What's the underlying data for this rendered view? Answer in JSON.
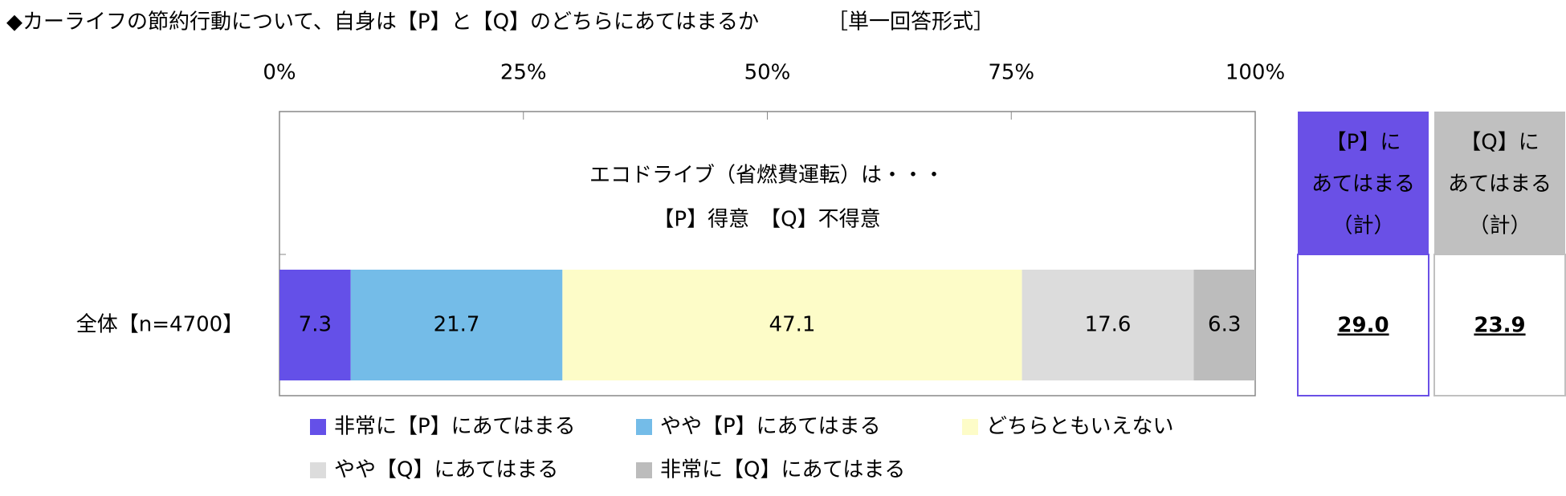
{
  "chart_data": {
    "type": "stacked_bar_horizontal",
    "title": "◆カーライフの節約行動について、自身は【P】と【Q】のどちらにあてはまるか",
    "subtitle": "［単一回答形式］",
    "annotation": [
      "エコドライブ（省燃費運転）は・・・",
      "【P】得意　【Q】不得意"
    ],
    "categories": [
      "全体【n=4700】"
    ],
    "series": [
      {
        "name": "非常に【P】にあてはまる",
        "color": "#6450e8",
        "values": [
          7.3
        ]
      },
      {
        "name": "やや【P】にあてはまる",
        "color": "#74bce8",
        "values": [
          21.7
        ]
      },
      {
        "name": "どちらともいえない",
        "color": "#fdfcc8",
        "values": [
          47.1
        ]
      },
      {
        "name": "やや【Q】にあてはまる",
        "color": "#dcdcdc",
        "values": [
          17.6
        ]
      },
      {
        "name": "非常に【Q】にあてはまる",
        "color": "#bcbcbc",
        "values": [
          6.3
        ]
      }
    ],
    "xlim": [
      0,
      100
    ],
    "xticks": [
      {
        "value": 0,
        "label": "0%"
      },
      {
        "value": 25,
        "label": "25%"
      },
      {
        "value": 50,
        "label": "50%"
      },
      {
        "value": 75,
        "label": "75%"
      },
      {
        "value": 100,
        "label": "100%"
      }
    ],
    "summary": [
      {
        "header": [
          "【P】に",
          "あてはまる",
          "（計）"
        ],
        "color": "#6a50e6",
        "values": [
          29.0
        ],
        "value_labels": [
          "29.0"
        ]
      },
      {
        "header": [
          "【Q】に",
          "あてはまる",
          "（計）"
        ],
        "color": "#c0c0c0",
        "values": [
          23.9
        ],
        "value_labels": [
          "23.9"
        ]
      }
    ]
  }
}
